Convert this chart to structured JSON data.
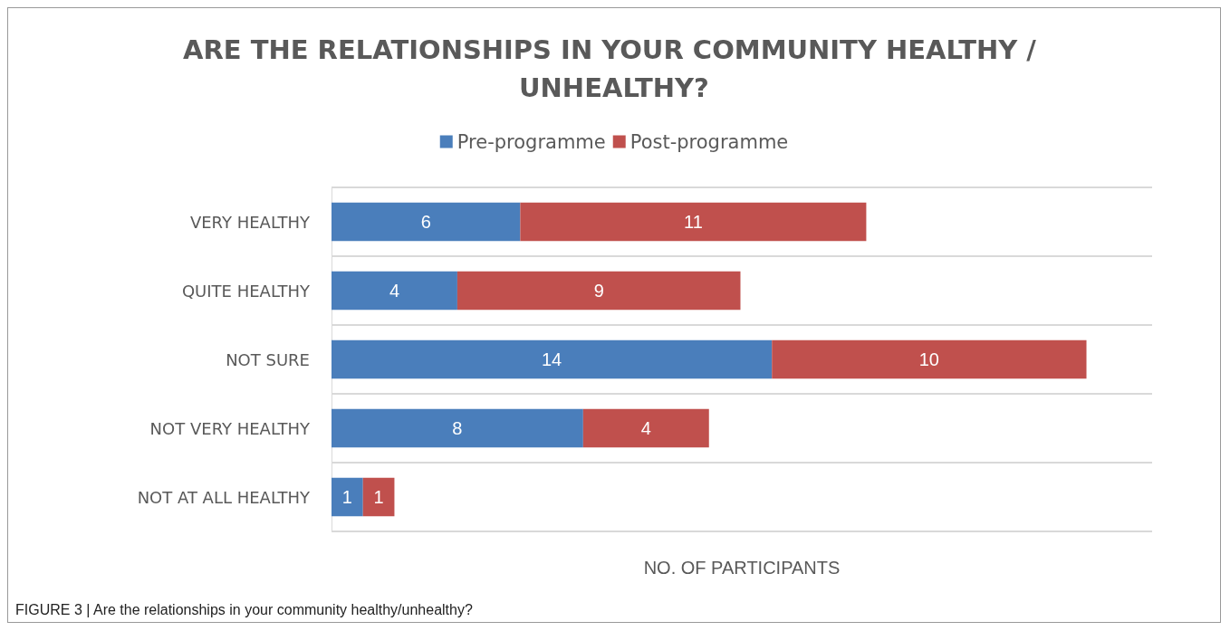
{
  "chart_data": {
    "type": "bar",
    "orientation": "horizontal",
    "stacked": true,
    "title": "ARE THE RELATIONSHIPS IN YOUR COMMUNITY HEALTHY / UNHEALTHY?",
    "xlabel": "NO. OF PARTICIPANTS",
    "categories": [
      "VERY HEALTHY",
      "QUITE HEALTHY",
      "NOT SURE",
      "NOT VERY HEALTHY",
      "NOT AT ALL HEALTHY"
    ],
    "series": [
      {
        "name": "Pre-programme",
        "color": "#4a7ebb",
        "values": [
          6,
          4,
          14,
          8,
          1
        ]
      },
      {
        "name": "Post-programme",
        "color": "#c0504d",
        "values": [
          11,
          9,
          10,
          4,
          1
        ]
      }
    ],
    "data_labels": true,
    "legend": "top",
    "grid": "y",
    "annotations": [
      "FIGURE 3 | Are the relationships in your community healthy/unhealthy?"
    ]
  }
}
